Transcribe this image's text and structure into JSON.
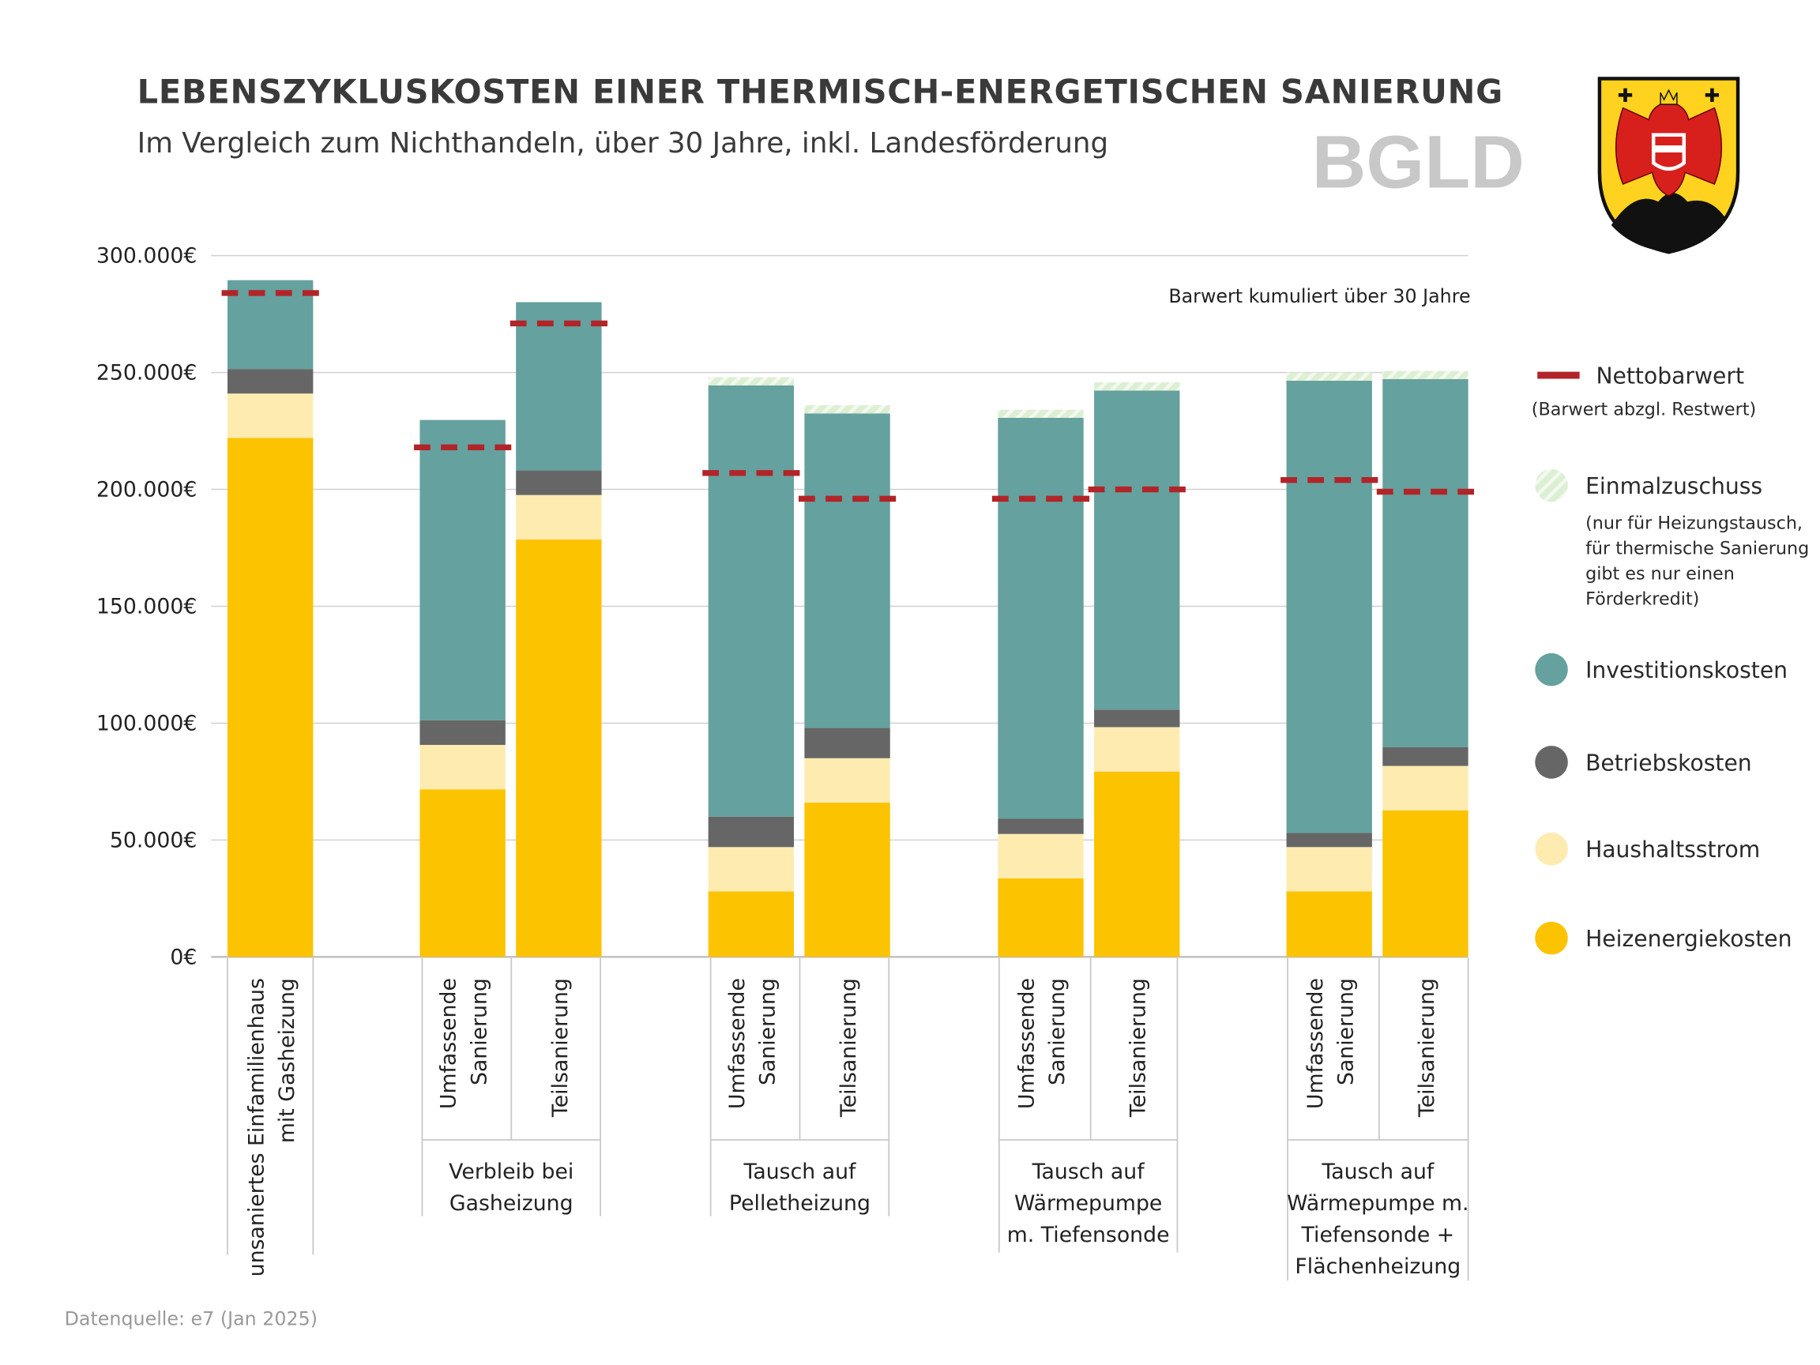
{
  "header": {
    "title": "LEBENSZYKLUSKOSTEN EINER THERMISCH-ENERGETISCHEN SANIERUNG",
    "subtitle": "Im Vergleich zum Nichthandeln, über 30 Jahre, inkl. Landesförderung",
    "watermark": "BGLD"
  },
  "logo": {
    "name": "coat-of-arms-burgenland"
  },
  "source": "Datenquelle: e7 (Jan 2025)",
  "chart_data": {
    "type": "bar",
    "stacked": true,
    "unit": "€",
    "annotation": "Barwert kumuliert über 30 Jahre",
    "ylim": [
      0,
      300000
    ],
    "y_ticks": [
      0,
      50000,
      100000,
      150000,
      200000,
      250000,
      300000
    ],
    "y_tick_labels": [
      "0€",
      "50.000€",
      "100.000€",
      "150.000€",
      "200.000€",
      "250.000€",
      "300.000€"
    ],
    "grid": true,
    "legend_position": "right",
    "categories": [
      [
        "unsaniertes Einfamilienhaus",
        "mit Gasheizung"
      ],
      [
        "Umfassende",
        "Sanierung"
      ],
      [
        "Teilsanierung"
      ],
      [
        "Umfassende",
        "Sanierung"
      ],
      [
        "Teilsanierung"
      ],
      [
        "Umfassende",
        "Sanierung"
      ],
      [
        "Teilsanierung"
      ],
      [
        "Umfassende",
        "Sanierung"
      ],
      [
        "Teilsanierung"
      ]
    ],
    "groups": [
      {
        "label": [
          "Verbleib bei",
          "Gasheizung"
        ],
        "members": [
          1,
          2
        ]
      },
      {
        "label": [
          "Tausch auf",
          "Pelletheizung"
        ],
        "members": [
          3,
          4
        ]
      },
      {
        "label": [
          "Tausch auf",
          "Wärmepumpe",
          "m. Tiefensonde"
        ],
        "members": [
          5,
          6
        ]
      },
      {
        "label": [
          "Tausch auf",
          "Wärmepumpe m.",
          "Tiefensonde +",
          "Flächenheizung"
        ],
        "members": [
          7,
          8
        ]
      }
    ],
    "series": [
      {
        "name": "Heizenergiekosten",
        "color": "#FCC300",
        "values": [
          222000,
          71700,
          178600,
          28000,
          66000,
          33600,
          79300,
          28000,
          62700
        ]
      },
      {
        "name": "Haushaltsstrom",
        "color": "#FEEBB0",
        "values": [
          19000,
          19000,
          19000,
          19000,
          19000,
          19000,
          19000,
          19000,
          19000
        ]
      },
      {
        "name": "Betriebskosten",
        "color": "#666666",
        "values": [
          10500,
          10500,
          10500,
          13000,
          13000,
          6500,
          7500,
          6000,
          8000
        ]
      },
      {
        "name": "Investitionskosten",
        "color": "#65A19E",
        "values": [
          38000,
          128500,
          72000,
          184500,
          134500,
          171500,
          136500,
          193500,
          157500
        ]
      },
      {
        "name": "Einmalzuschuss",
        "color": "#DCEFD2",
        "values": [
          0,
          0,
          0,
          3500,
          3500,
          3500,
          3500,
          3500,
          3500
        ]
      }
    ],
    "line_series": {
      "name": "Nettobarwert",
      "sublabel": "(Barwert abzgl. Restwert)",
      "color": "#B22428",
      "values": [
        284000,
        218000,
        271000,
        207000,
        196000,
        196000,
        200000,
        204000,
        199000
      ]
    },
    "legend": [
      {
        "label": "Nettobarwert",
        "sub": [
          "(Barwert abzgl. Restwert)"
        ],
        "kind": "dash",
        "color": "#B22428"
      },
      {
        "label": "Einmalzuschuss",
        "sub": [
          "(nur für Heizungstausch,",
          "für thermische Sanierung",
          "gibt es nur einen",
          "Förderkredit)"
        ],
        "kind": "hatch",
        "color": "#DCEFD2"
      },
      {
        "label": "Investitionskosten",
        "kind": "dot",
        "color": "#65A19E"
      },
      {
        "label": "Betriebskosten",
        "kind": "dot",
        "color": "#666666"
      },
      {
        "label": "Haushaltsstrom",
        "kind": "dot",
        "color": "#FEEBB0"
      },
      {
        "label": "Heizenergiekosten",
        "kind": "dot",
        "color": "#FCC300"
      }
    ]
  }
}
